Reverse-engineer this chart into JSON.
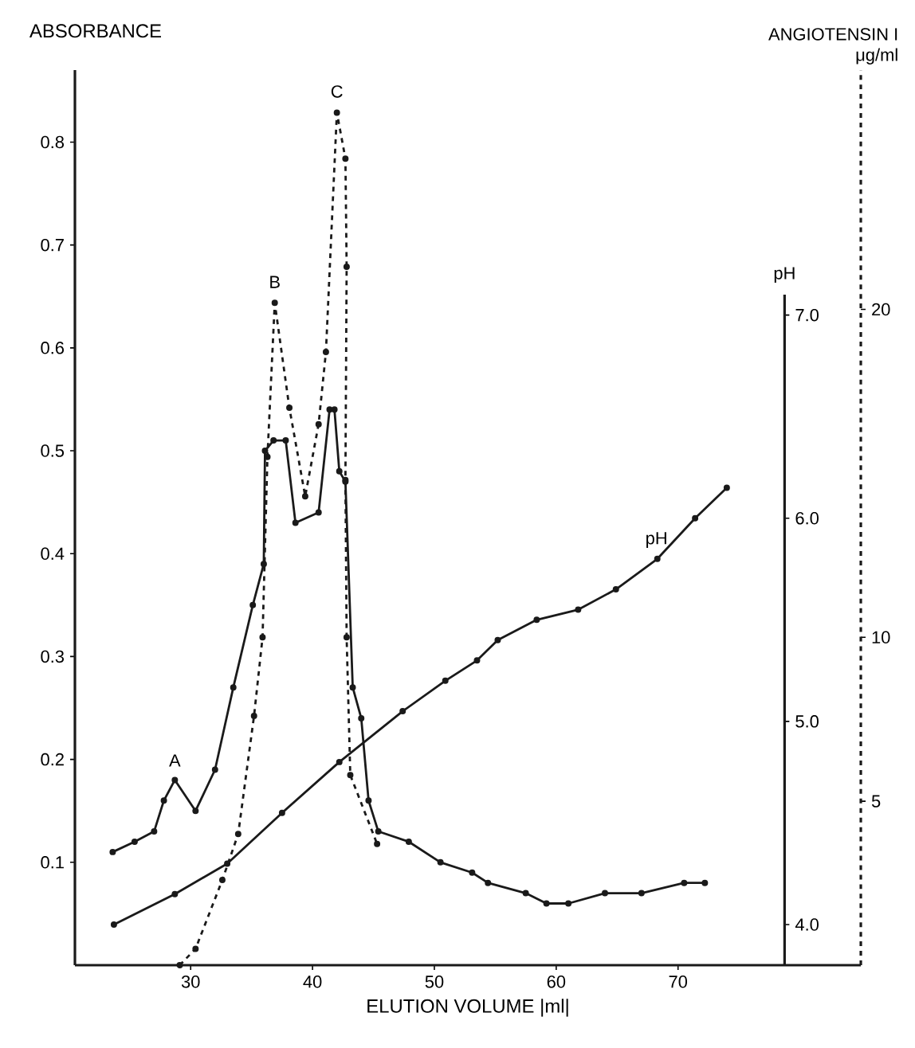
{
  "chart_data": {
    "type": "line",
    "xlabel": "ELUTION VOLUME |ml|",
    "ylabel": "ABSORBANCE",
    "y2label": "pH",
    "y3label": "ANGIOTENSIN I μg/ml",
    "xlim": [
      20.5,
      85
    ],
    "xticks": [
      30,
      40,
      50,
      60,
      70
    ],
    "ylim": [
      0,
      0.87
    ],
    "yticks": [
      0.1,
      0.2,
      0.3,
      0.4,
      0.5,
      0.6,
      0.7,
      0.8
    ],
    "y2lim": [
      3.8,
      7.1
    ],
    "y2ticks": [
      {
        "value": 4,
        "label": "4.0"
      },
      {
        "value": 5,
        "label": "5.0"
      },
      {
        "value": 6,
        "label": "6.0"
      },
      {
        "value": 7,
        "label": "7.0"
      }
    ],
    "y3lim": [
      0,
      27.3
    ],
    "y3ticks": [
      5,
      10,
      20
    ],
    "marker": "circle",
    "series": [
      {
        "color": "#1a1a1a",
        "line_style": "solid",
        "x": [
          23.6,
          25.4,
          27,
          27.8,
          28.7,
          30.4,
          32,
          33.5,
          35.1,
          36,
          36.1,
          36.8,
          37.8,
          38.6,
          40.5,
          41.4,
          41.8,
          42.2,
          42.7,
          43.3,
          44,
          44.6,
          45.4,
          47.9,
          50.5,
          53.1,
          54.4,
          57.5,
          59.2,
          61,
          64,
          67,
          70.5,
          72.2
        ],
        "values": [
          0.11,
          0.12,
          0.13,
          0.16,
          0.18,
          0.15,
          0.19,
          0.27,
          0.35,
          0.39,
          0.5,
          0.51,
          0.51,
          0.43,
          0.44,
          0.54,
          0.54,
          0.48,
          0.47,
          0.27,
          0.24,
          0.16,
          0.13,
          0.12,
          0.1,
          0.09,
          0.08,
          0.07,
          0.06,
          0.06,
          0.07,
          0.07,
          0.08,
          0.08
        ]
      },
      {
        "color": "#1a1a1a",
        "line_style": "solid",
        "axis": "y2",
        "x": [
          23.7,
          28.7,
          33,
          37.5,
          42.2,
          47.4,
          50.9,
          53.5,
          55.2,
          58.4,
          61.8,
          64.9,
          68.3,
          71.4,
          74
        ],
        "values": [
          4.0,
          4.15,
          4.3,
          4.55,
          4.8,
          5.05,
          5.2,
          5.3,
          5.4,
          5.5,
          5.55,
          5.65,
          5.8,
          6.0,
          6.15
        ]
      },
      {
        "color": "#1a1a1a",
        "line_style": "dashed",
        "axis": "y3",
        "x": [
          29.1,
          30.4,
          32.6,
          33.9,
          35.2,
          35.9,
          36.3,
          36.9,
          38.1,
          39.4,
          40.5,
          41.1,
          42,
          42.7,
          42.8,
          42.7,
          42.8,
          43.1,
          45.3
        ],
        "values": [
          0,
          0.5,
          2.6,
          4,
          7.6,
          10,
          15.5,
          20.2,
          17,
          14.3,
          16.5,
          18.7,
          26,
          24.6,
          21.3,
          14.8,
          10,
          5.8,
          3.7
        ]
      }
    ],
    "annotations": [
      {
        "text": "A",
        "x": 28.7,
        "y": 0.18
      },
      {
        "text": "B",
        "x": 36.9,
        "y": 0.645
      },
      {
        "text": "C",
        "x": 42,
        "y": 0.83
      },
      "pH"
    ]
  }
}
